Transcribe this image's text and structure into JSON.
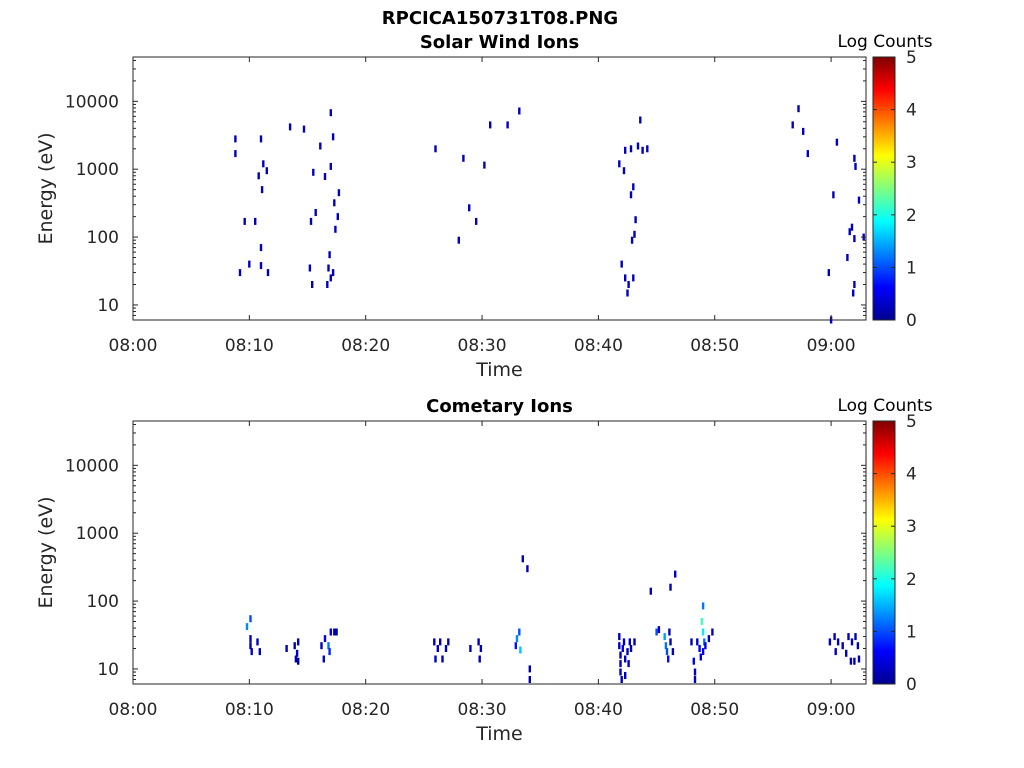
{
  "figure_title": "RPCICA150731T08.PNG",
  "chart_data": [
    {
      "type": "heatmap",
      "title": "Solar Wind Ions",
      "xlabel": "Time",
      "ylabel": "Energy (eV)",
      "y_scale": "log",
      "ylim": [
        6,
        45000
      ],
      "xlim": [
        "08:00",
        "09:03"
      ],
      "x_ticks": [
        "08:00",
        "08:10",
        "08:20",
        "08:30",
        "08:40",
        "08:50",
        "09:00"
      ],
      "y_ticks": [
        "10",
        "100",
        "1000",
        "10000"
      ],
      "colorbar": {
        "label": "Log Counts",
        "ticks": [
          "0",
          "1",
          "2",
          "3",
          "4",
          "5"
        ],
        "range": [
          0,
          5
        ]
      },
      "points": [
        [
          "08:08.8",
          2800,
          0.3
        ],
        [
          "08:08.8",
          1700,
          0.3
        ],
        [
          "08:09.2",
          30,
          0.3
        ],
        [
          "08:09.6",
          170,
          0.3
        ],
        [
          "08:10.0",
          40,
          0.3
        ],
        [
          "08:10.5",
          170,
          0.3
        ],
        [
          "08:10.8",
          800,
          0.3
        ],
        [
          "08:11.0",
          2800,
          0.3
        ],
        [
          "08:11.1",
          500,
          0.3
        ],
        [
          "08:11.0",
          70,
          0.3
        ],
        [
          "08:11.0",
          38,
          0.3
        ],
        [
          "08:11.2",
          1200,
          0.3
        ],
        [
          "08:11.5",
          950,
          0.3
        ],
        [
          "08:11.6",
          30,
          0.3
        ],
        [
          "08:13.5",
          4200,
          0.3
        ],
        [
          "08:14.7",
          3900,
          0.3
        ],
        [
          "08:15.2",
          35,
          0.3
        ],
        [
          "08:15.4",
          20,
          0.3
        ],
        [
          "08:15.3",
          170,
          0.3
        ],
        [
          "08:15.5",
          900,
          0.3
        ],
        [
          "08:15.7",
          230,
          0.3
        ],
        [
          "08:16.1",
          2200,
          0.3
        ],
        [
          "08:16.5",
          780,
          0.3
        ],
        [
          "08:16.7",
          20,
          0.3
        ],
        [
          "08:16.8",
          35,
          0.3
        ],
        [
          "08:16.9",
          55,
          0.3
        ],
        [
          "08:17.0",
          25,
          0.3
        ],
        [
          "08:17.0",
          6800,
          0.3
        ],
        [
          "08:17.0",
          1100,
          0.3
        ],
        [
          "08:17.2",
          30,
          0.3
        ],
        [
          "08:17.2",
          3000,
          0.3
        ],
        [
          "08:17.3",
          320,
          0.3
        ],
        [
          "08:17.4",
          130,
          0.3
        ],
        [
          "08:17.6",
          200,
          0.3
        ],
        [
          "08:17.7",
          450,
          0.3
        ],
        [
          "08:26.0",
          2000,
          0.3
        ],
        [
          "08:28.0",
          90,
          0.3
        ],
        [
          "08:28.4",
          1450,
          0.3
        ],
        [
          "08:28.9",
          270,
          0.3
        ],
        [
          "08:29.5",
          170,
          0.3
        ],
        [
          "08:30.2",
          1150,
          0.3
        ],
        [
          "08:30.7",
          4500,
          0.3
        ],
        [
          "08:32.2",
          4500,
          0.3
        ],
        [
          "08:33.2",
          7200,
          0.3
        ],
        [
          "08:41.8",
          1200,
          0.3
        ],
        [
          "08:42.0",
          40,
          0.3
        ],
        [
          "08:42.3",
          1900,
          0.3
        ],
        [
          "08:42.2",
          950,
          0.3
        ],
        [
          "08:42.3",
          25,
          0.3
        ],
        [
          "08:42.5",
          15,
          0.3
        ],
        [
          "08:42.6",
          20,
          0.3
        ],
        [
          "08:42.8",
          2000,
          0.3
        ],
        [
          "08:42.8",
          420,
          0.3
        ],
        [
          "08:42.9",
          90,
          0.3
        ],
        [
          "08:43.0",
          550,
          0.3
        ],
        [
          "08:43.0",
          25,
          0.3
        ],
        [
          "08:43.1",
          110,
          0.3
        ],
        [
          "08:43.2",
          180,
          0.3
        ],
        [
          "08:43.4",
          2200,
          0.3
        ],
        [
          "08:43.6",
          5300,
          0.3
        ],
        [
          "08:43.8",
          1900,
          0.3
        ],
        [
          "08:44.2",
          2000,
          0.3
        ],
        [
          "08:56.7",
          4500,
          0.3
        ],
        [
          "08:57.2",
          7800,
          0.3
        ],
        [
          "08:57.6",
          3600,
          0.3
        ],
        [
          "08:58.0",
          1700,
          0.3
        ],
        [
          "08:59.8",
          30,
          0.3
        ],
        [
          "09:00.2",
          420,
          0.3
        ],
        [
          "09:00.5",
          2500,
          0.3
        ],
        [
          "09:01.4",
          50,
          0.3
        ],
        [
          "09:01.6",
          120,
          0.3
        ],
        [
          "09:01.8",
          140,
          0.3
        ],
        [
          "09:01.9",
          15,
          0.3
        ],
        [
          "09:02.0",
          20,
          0.3
        ],
        [
          "09:02.0",
          95,
          0.3
        ],
        [
          "09:02.0",
          1450,
          0.3
        ],
        [
          "09:02.1",
          1100,
          0.3
        ],
        [
          "09:02.4",
          350,
          0.3
        ],
        [
          "09:02.8",
          100,
          0.3
        ],
        [
          "09:00.0",
          6,
          0.3
        ]
      ]
    },
    {
      "type": "heatmap",
      "title": "Cometary Ions",
      "xlabel": "Time",
      "ylabel": "Energy (eV)",
      "y_scale": "log",
      "ylim": [
        6,
        45000
      ],
      "xlim": [
        "08:00",
        "09:03"
      ],
      "x_ticks": [
        "08:00",
        "08:10",
        "08:20",
        "08:30",
        "08:40",
        "08:50",
        "09:00"
      ],
      "y_ticks": [
        "10",
        "100",
        "1000",
        "10000"
      ],
      "colorbar": {
        "label": "Log Counts",
        "ticks": [
          "0",
          "1",
          "2",
          "3",
          "4",
          "5"
        ],
        "range": [
          0,
          5
        ]
      },
      "points": [
        [
          "08:09.8",
          42,
          1.3
        ],
        [
          "08:10.1",
          55,
          1.0
        ],
        [
          "08:10.1",
          28,
          0.4
        ],
        [
          "08:10.1",
          22,
          0.2
        ],
        [
          "08:10.2",
          18,
          0.3
        ],
        [
          "08:10.7",
          25,
          0.3
        ],
        [
          "08:10.9",
          18,
          0.3
        ],
        [
          "08:13.2",
          20,
          0.3
        ],
        [
          "08:13.9",
          22,
          0.3
        ],
        [
          "08:14.0",
          14,
          0.2
        ],
        [
          "08:14.1",
          17,
          0.3
        ],
        [
          "08:14.2",
          25,
          0.3
        ],
        [
          "08:14.2",
          13,
          0.2
        ],
        [
          "08:16.2",
          22,
          0.3
        ],
        [
          "08:16.4",
          14,
          0.3
        ],
        [
          "08:16.5",
          28,
          0.5
        ],
        [
          "08:16.8",
          22,
          1.2
        ],
        [
          "08:16.9",
          18,
          0.8
        ],
        [
          "08:17.0",
          35,
          0.5
        ],
        [
          "08:17.3",
          35,
          0.3
        ],
        [
          "08:17.5",
          35,
          0.2
        ],
        [
          "08:25.9",
          25,
          0.3
        ],
        [
          "08:26.0",
          14,
          0.3
        ],
        [
          "08:26.2",
          20,
          0.3
        ],
        [
          "08:26.4",
          25,
          0.3
        ],
        [
          "08:26.6",
          14,
          0.3
        ],
        [
          "08:26.9",
          20,
          0.3
        ],
        [
          "08:27.1",
          25,
          0.2
        ],
        [
          "08:29.0",
          20,
          0.3
        ],
        [
          "08:29.7",
          25,
          0.3
        ],
        [
          "08:29.8",
          14,
          0.3
        ],
        [
          "08:29.9",
          20,
          0.3
        ],
        [
          "08:32.9",
          22,
          0.7
        ],
        [
          "08:33.0",
          28,
          1.3
        ],
        [
          "08:33.2",
          35,
          1.0
        ],
        [
          "08:33.3",
          19,
          1.6
        ],
        [
          "08:33.5",
          420,
          0.3
        ],
        [
          "08:33.9",
          300,
          0.3
        ],
        [
          "08:34.1",
          10,
          0.2
        ],
        [
          "08:34.1",
          7,
          0.2
        ],
        [
          "08:41.8",
          30,
          0.3
        ],
        [
          "08:41.8",
          22,
          0.3
        ],
        [
          "08:41.9",
          16,
          0.3
        ],
        [
          "08:41.9",
          12,
          0.3
        ],
        [
          "08:41.9",
          9,
          0.3
        ],
        [
          "08:42.0",
          7,
          0.3
        ],
        [
          "08:42.1",
          20,
          0.5
        ],
        [
          "08:42.2",
          25,
          0.3
        ],
        [
          "08:42.3",
          14,
          0.3
        ],
        [
          "08:42.3",
          8,
          0.3
        ],
        [
          "08:42.5",
          18,
          0.3
        ],
        [
          "08:42.6",
          12,
          0.3
        ],
        [
          "08:42.7",
          25,
          0.3
        ],
        [
          "08:42.8",
          20,
          0.3
        ],
        [
          "08:43.1",
          25,
          0.2
        ],
        [
          "08:44.5",
          140,
          0.3
        ],
        [
          "08:45.0",
          35,
          1.0
        ],
        [
          "08:45.2",
          38,
          0.4
        ],
        [
          "08:45.7",
          30,
          1.4
        ],
        [
          "08:45.8",
          22,
          1.2
        ],
        [
          "08:45.9",
          18,
          1.0
        ],
        [
          "08:46.0",
          14,
          0.7
        ],
        [
          "08:46.1",
          35,
          0.3
        ],
        [
          "08:46.2",
          25,
          0.3
        ],
        [
          "08:46.2",
          160,
          0.3
        ],
        [
          "08:46.4",
          18,
          0.3
        ],
        [
          "08:46.6",
          250,
          0.3
        ],
        [
          "08:48.0",
          25,
          0.3
        ],
        [
          "08:48.2",
          13,
          0.5
        ],
        [
          "08:48.3",
          9,
          0.4
        ],
        [
          "08:48.3",
          7,
          0.3
        ],
        [
          "08:48.5",
          25,
          0.3
        ],
        [
          "08:48.7",
          20,
          0.6
        ],
        [
          "08:48.8",
          15,
          0.4
        ],
        [
          "08:49.0",
          85,
          1.2
        ],
        [
          "08:48.9",
          50,
          2.2
        ],
        [
          "08:49.0",
          35,
          1.8
        ],
        [
          "08:49.1",
          25,
          1.2
        ],
        [
          "08:49.0",
          18,
          0.6
        ],
        [
          "08:49.2",
          22,
          0.5
        ],
        [
          "08:49.5",
          28,
          0.3
        ],
        [
          "08:49.8",
          35,
          0.4
        ],
        [
          "08:59.9",
          25,
          0.3
        ],
        [
          "09:00.3",
          30,
          0.3
        ],
        [
          "09:00.4",
          18,
          0.3
        ],
        [
          "09:00.6",
          25,
          0.3
        ],
        [
          "09:01.0",
          22,
          0.3
        ],
        [
          "09:01.3",
          17,
          0.3
        ],
        [
          "09:01.5",
          30,
          0.3
        ],
        [
          "09:01.7",
          13,
          0.3
        ],
        [
          "09:01.8",
          25,
          0.3
        ],
        [
          "09:02.0",
          13,
          0.3
        ],
        [
          "09:02.1",
          30,
          0.3
        ],
        [
          "09:02.3",
          22,
          0.3
        ],
        [
          "09:02.4",
          14,
          0.3
        ]
      ]
    }
  ]
}
